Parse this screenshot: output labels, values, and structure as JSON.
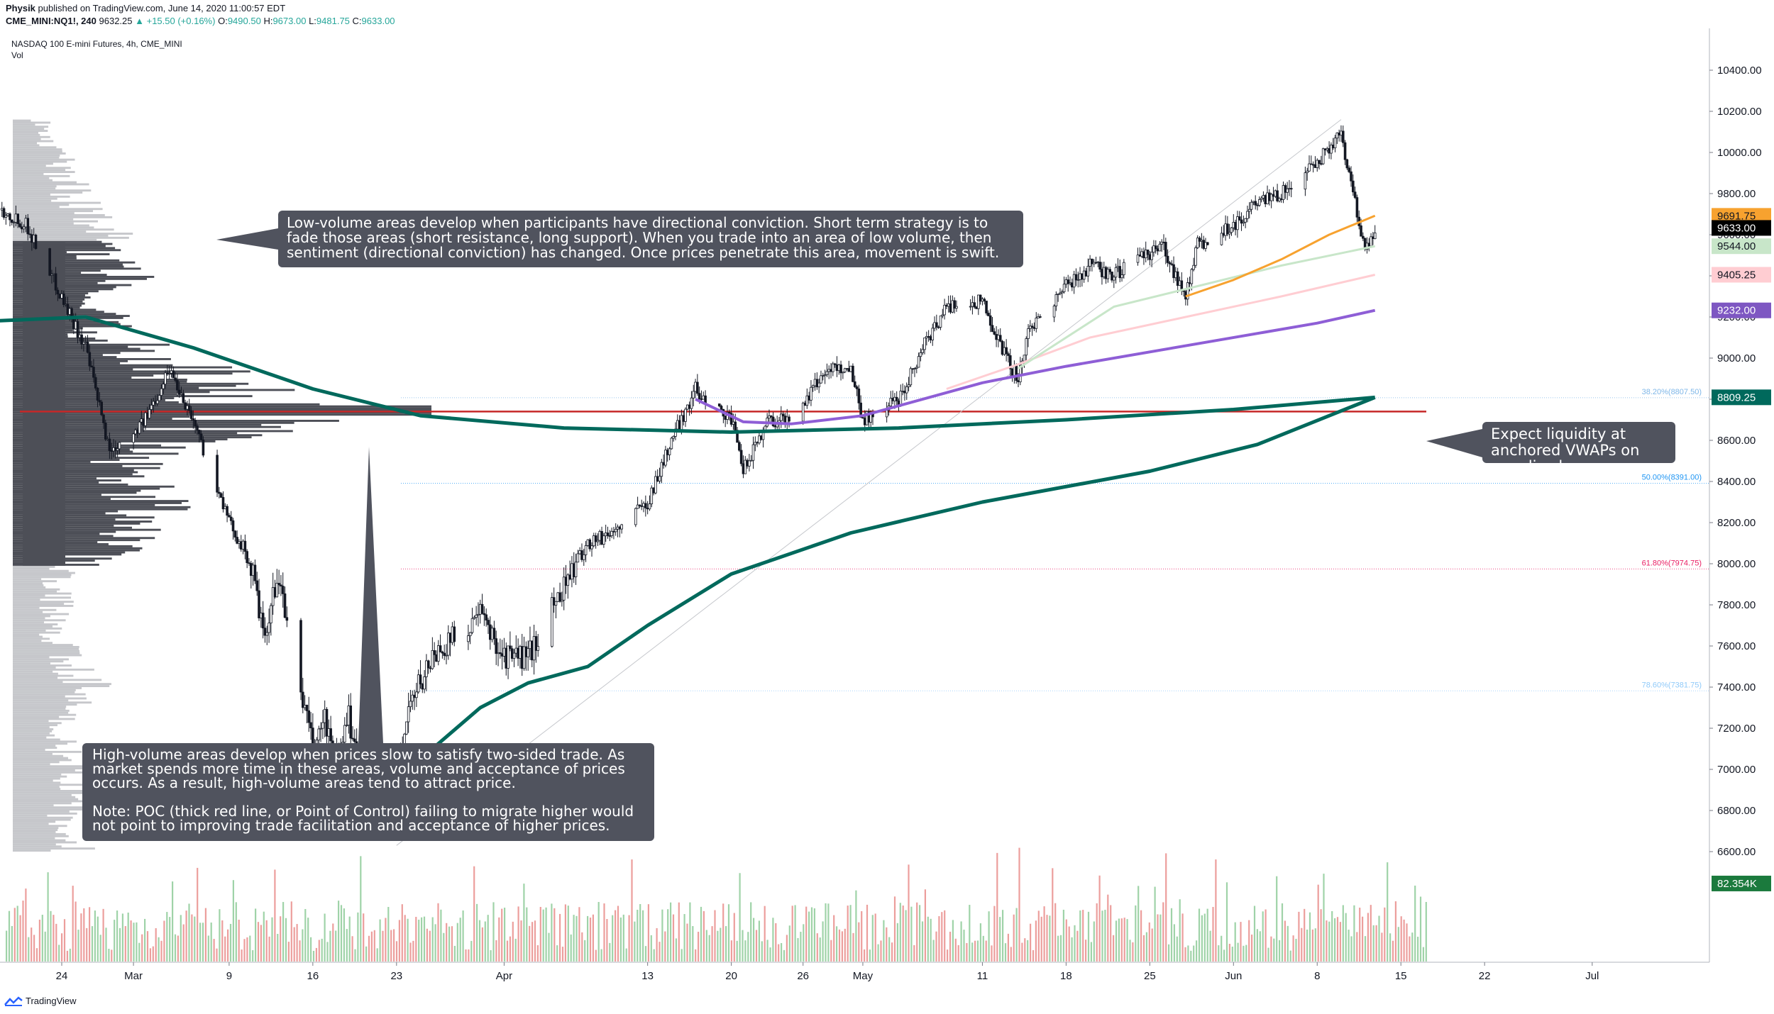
{
  "header": {
    "author": "Physik",
    "published": "published on TradingView.com, June 14, 2020 11:00:57 EDT",
    "symbol": "CME_MINI:NQ1!, 240",
    "last": "9632.25",
    "change": "▲ +15.50 (+0.16%)",
    "o_label": "O:",
    "o": "9490.50",
    "h_label": "H:",
    "h": "9673.00",
    "l_label": "L:",
    "l": "9481.75",
    "c_label": "C:",
    "c": "9633.00"
  },
  "legend": {
    "title": "NASDAQ 100 E-mini Futures, 4h, CME_MINI",
    "vol": "Vol"
  },
  "annotations": {
    "low_volume": "Low-volume areas develop when participants have directional conviction. Short term strategy is to fade those areas (short resistance, long support). When you trade into an area of low volume, then sentiment (directional conviction) has changed. Once prices penetrate this area, movement is swift.",
    "high_volume": "High-volume areas develop when prices slow to satisfy two-sided trade. As market spends more time in these areas, volume and acceptance of prices occurs. As a result, high-volume areas tend to attract price.\n\nNote: POC (thick red line, or Point of Control) failing to migrate higher would not point to improving trade facilitation and acceptance of higher prices.",
    "vwap": "Expect liquidity at anchored VWAPs on any dips lower."
  },
  "branding": {
    "logo": "TradingView"
  },
  "chart_data": {
    "type": "candlestick",
    "timeframe": "4h",
    "ylim": [
      6380,
      10600
    ],
    "y_ticks": [
      6600,
      6800,
      7000,
      7200,
      7400,
      7600,
      7800,
      8000,
      8200,
      8400,
      8600,
      8800,
      9000,
      9200,
      9400,
      9600,
      9800,
      10000,
      10200,
      10400
    ],
    "y_tick_labels": [
      "6600.00",
      "6800.00",
      "7000.00",
      "7200.00",
      "7400.00",
      "7600.00",
      "7800.00",
      "8000.00",
      "8200.00",
      "8400.00",
      "8600.00",
      "8800.00",
      "9000.00",
      "9200.00",
      "9400.00",
      "9600.00",
      "9800.00",
      "10000.00",
      "10200.00",
      "10400.00"
    ],
    "x_ticks": [
      {
        "date": "2020-02-24",
        "label": "24"
      },
      {
        "date": "2020-03-01",
        "label": "Mar"
      },
      {
        "date": "2020-03-09",
        "label": "9"
      },
      {
        "date": "2020-03-16",
        "label": "16"
      },
      {
        "date": "2020-03-23",
        "label": "23"
      },
      {
        "date": "2020-04-01",
        "label": "Apr"
      },
      {
        "date": "2020-04-13",
        "label": "13"
      },
      {
        "date": "2020-04-20",
        "label": "20"
      },
      {
        "date": "2020-04-26",
        "label": "26"
      },
      {
        "date": "2020-05-01",
        "label": "May"
      },
      {
        "date": "2020-05-11",
        "label": "11"
      },
      {
        "date": "2020-05-18",
        "label": "18"
      },
      {
        "date": "2020-05-25",
        "label": "25"
      },
      {
        "date": "2020-06-01",
        "label": "Jun"
      },
      {
        "date": "2020-06-08",
        "label": "8"
      },
      {
        "date": "2020-06-15",
        "label": "15"
      },
      {
        "date": "2020-06-22",
        "label": "22"
      },
      {
        "date": "2020-07-01",
        "label": "Jul"
      }
    ],
    "price_path": [
      [
        "2020-02-19",
        9720
      ],
      [
        "2020-02-21",
        9650
      ],
      [
        "2020-02-24",
        9300
      ],
      [
        "2020-02-26",
        9050
      ],
      [
        "2020-02-28",
        8550
      ],
      [
        "2020-03-02",
        8700
      ],
      [
        "2020-03-04",
        8950
      ],
      [
        "2020-03-06",
        8700
      ],
      [
        "2020-03-09",
        8200
      ],
      [
        "2020-03-10",
        8100
      ],
      [
        "2020-03-11",
        7950
      ],
      [
        "2020-03-12",
        7600
      ],
      [
        "2020-03-13",
        7950
      ],
      [
        "2020-03-16",
        7100
      ],
      [
        "2020-03-17",
        7250
      ],
      [
        "2020-03-18",
        7000
      ],
      [
        "2020-03-19",
        7250
      ],
      [
        "2020-03-20",
        7000
      ],
      [
        "2020-03-22",
        6700
      ],
      [
        "2020-03-23",
        6950
      ],
      [
        "2020-03-24",
        7300
      ],
      [
        "2020-03-26",
        7550
      ],
      [
        "2020-03-30",
        7750
      ],
      [
        "2020-04-01",
        7550
      ],
      [
        "2020-04-03",
        7550
      ],
      [
        "2020-04-06",
        7900
      ],
      [
        "2020-04-08",
        8100
      ],
      [
        "2020-04-10",
        8150
      ],
      [
        "2020-04-13",
        8300
      ],
      [
        "2020-04-15",
        8600
      ],
      [
        "2020-04-17",
        8850
      ],
      [
        "2020-04-20",
        8700
      ],
      [
        "2020-04-21",
        8450
      ],
      [
        "2020-04-23",
        8700
      ],
      [
        "2020-04-25",
        8700
      ],
      [
        "2020-04-28",
        8950
      ],
      [
        "2020-04-30",
        8950
      ],
      [
        "2020-05-01",
        8700
      ],
      [
        "2020-05-04",
        8800
      ],
      [
        "2020-05-06",
        9050
      ],
      [
        "2020-05-08",
        9250
      ],
      [
        "2020-05-11",
        9280
      ],
      [
        "2020-05-13",
        9000
      ],
      [
        "2020-05-14",
        8900
      ],
      [
        "2020-05-15",
        9150
      ],
      [
        "2020-05-18",
        9350
      ],
      [
        "2020-05-20",
        9450
      ],
      [
        "2020-05-22",
        9400
      ],
      [
        "2020-05-26",
        9550
      ],
      [
        "2020-05-28",
        9300
      ],
      [
        "2020-05-29",
        9550
      ],
      [
        "2020-06-01",
        9650
      ],
      [
        "2020-06-03",
        9750
      ],
      [
        "2020-06-05",
        9800
      ],
      [
        "2020-06-08",
        9950
      ],
      [
        "2020-06-10",
        10100
      ],
      [
        "2020-06-11",
        9800
      ],
      [
        "2020-06-12",
        9500
      ],
      [
        "2020-06-12T20:00",
        9633
      ]
    ],
    "poc": 8740,
    "fib_levels": [
      {
        "label": "38.20%(8807.50)",
        "value": 8807.5,
        "color": "#7fb7e8"
      },
      {
        "label": "50.00%(8391.00)",
        "value": 8391.0,
        "color": "#2196f3"
      },
      {
        "label": "61.80%(7974.75)",
        "value": 7974.75,
        "color": "#e91e63"
      },
      {
        "label": "78.60%(7381.75)",
        "value": 7381.75,
        "color": "#90caf9"
      }
    ],
    "price_labels": [
      {
        "label": "9691.75",
        "value": 9691.75,
        "bg": "#f7a22f",
        "fg": "#131722"
      },
      {
        "label": "9633.00",
        "value": 9633.0,
        "bg": "#000000",
        "fg": "#ffffff"
      },
      {
        "label": "9544.00",
        "value": 9544.0,
        "bg": "#c8e6c9",
        "fg": "#131722"
      },
      {
        "label": "9405.25",
        "value": 9405.25,
        "bg": "#ffcdd2",
        "fg": "#131722"
      },
      {
        "label": "9232.00",
        "value": 9232.0,
        "bg": "#7e57c2",
        "fg": "#ffffff"
      },
      {
        "label": "8809.25",
        "value": 8809.25,
        "bg": "#00695c",
        "fg": "#ffffff"
      },
      {
        "label": "82.354K",
        "value": 6445,
        "bg": "#1b7a3d",
        "fg": "#ffffff"
      }
    ],
    "vwaps": [
      {
        "name": "",
        "color": "#00695c",
        "width": 5,
        "points": [
          [
            "2020-02-18",
            9180
          ],
          [
            "2020-02-26",
            9200
          ],
          [
            "2020-03-06",
            9050
          ],
          [
            "2020-03-16",
            8850
          ],
          [
            "2020-03-25",
            8720
          ],
          [
            "2020-04-06",
            8660
          ],
          [
            "2020-04-20",
            8640
          ],
          [
            "2020-05-04",
            8660
          ],
          [
            "2020-05-18",
            8700
          ],
          [
            "2020-06-01",
            8750
          ],
          [
            "2020-06-12T20:00",
            8809
          ]
        ]
      },
      {
        "name": "",
        "color": "#00695c",
        "width": 5,
        "points": [
          [
            "2020-03-23",
            6700
          ],
          [
            "2020-03-25",
            7050
          ],
          [
            "2020-03-30",
            7300
          ],
          [
            "2020-04-03",
            7420
          ],
          [
            "2020-04-08",
            7500
          ],
          [
            "2020-04-13",
            7700
          ],
          [
            "2020-04-20",
            7950
          ],
          [
            "2020-04-30",
            8150
          ],
          [
            "2020-05-11",
            8300
          ],
          [
            "2020-05-25",
            8450
          ],
          [
            "2020-06-03",
            8580
          ],
          [
            "2020-06-12T20:00",
            8809
          ]
        ]
      },
      {
        "name": "",
        "color": "#8e5ed6",
        "width": 4,
        "points": [
          [
            "2020-04-17",
            8800
          ],
          [
            "2020-04-21",
            8690
          ],
          [
            "2020-04-25",
            8680
          ],
          [
            "2020-05-01",
            8720
          ],
          [
            "2020-05-11",
            8880
          ],
          [
            "2020-05-18",
            8960
          ],
          [
            "2020-05-29",
            9070
          ],
          [
            "2020-06-08",
            9170
          ],
          [
            "2020-06-12T20:00",
            9232
          ]
        ]
      },
      {
        "name": "",
        "color": "#ffcdd2",
        "width": 3,
        "points": [
          [
            "2020-05-08",
            8850
          ],
          [
            "2020-05-14",
            8970
          ],
          [
            "2020-05-20",
            9100
          ],
          [
            "2020-05-28",
            9200
          ],
          [
            "2020-06-05",
            9300
          ],
          [
            "2020-06-12T20:00",
            9405
          ]
        ]
      },
      {
        "name": "",
        "color": "#c8e6c9",
        "width": 3,
        "points": [
          [
            "2020-05-14",
            8950
          ],
          [
            "2020-05-22",
            9250
          ],
          [
            "2020-05-29",
            9350
          ],
          [
            "2020-06-05",
            9450
          ],
          [
            "2020-06-12T20:00",
            9544
          ]
        ]
      },
      {
        "name": "",
        "color": "#f7a22f",
        "width": 3,
        "points": [
          [
            "2020-05-28",
            9300
          ],
          [
            "2020-06-01",
            9380
          ],
          [
            "2020-06-05",
            9480
          ],
          [
            "2020-06-09",
            9600
          ],
          [
            "2020-06-12T20:00",
            9692
          ]
        ]
      }
    ],
    "trendline": [
      [
        "2020-03-23",
        6630
      ],
      [
        "2020-06-10",
        10160
      ]
    ],
    "volume_profile": {
      "value_area": [
        7990,
        9560
      ],
      "bins": [
        [
          6600,
          90
        ],
        [
          6700,
          55
        ],
        [
          6800,
          85
        ],
        [
          6900,
          75
        ],
        [
          7000,
          85
        ],
        [
          7100,
          70
        ],
        [
          7200,
          60
        ],
        [
          7300,
          75
        ],
        [
          7400,
          110
        ],
        [
          7500,
          75
        ],
        [
          7600,
          70
        ],
        [
          7700,
          55
        ],
        [
          7800,
          65
        ],
        [
          7900,
          55
        ],
        [
          8000,
          95
        ],
        [
          8100,
          150
        ],
        [
          8200,
          165
        ],
        [
          8300,
          185
        ],
        [
          8400,
          160
        ],
        [
          8500,
          180
        ],
        [
          8600,
          240
        ],
        [
          8700,
          360
        ],
        [
          8800,
          300
        ],
        [
          8900,
          260
        ],
        [
          9000,
          200
        ],
        [
          9100,
          130
        ],
        [
          9200,
          120
        ],
        [
          9300,
          90
        ],
        [
          9400,
          150
        ],
        [
          9500,
          110
        ],
        [
          9600,
          130
        ],
        [
          9700,
          100
        ],
        [
          9800,
          85
        ],
        [
          9900,
          70
        ],
        [
          10000,
          60
        ],
        [
          10100,
          45
        ]
      ]
    }
  }
}
